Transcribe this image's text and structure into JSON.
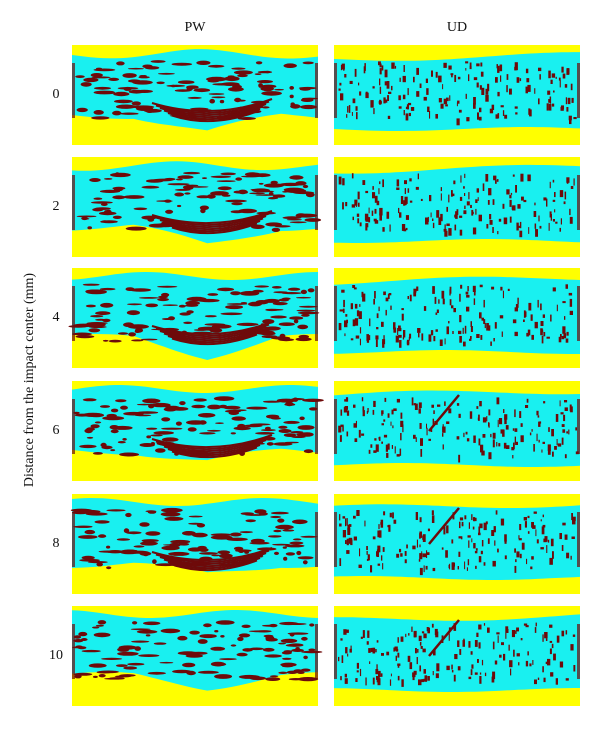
{
  "columns": [
    "PW",
    "UD"
  ],
  "rows": [
    "0",
    "2",
    "4",
    "6",
    "8",
    "10"
  ],
  "y_axis_label": "Distance from the impact center (mm)"
}
